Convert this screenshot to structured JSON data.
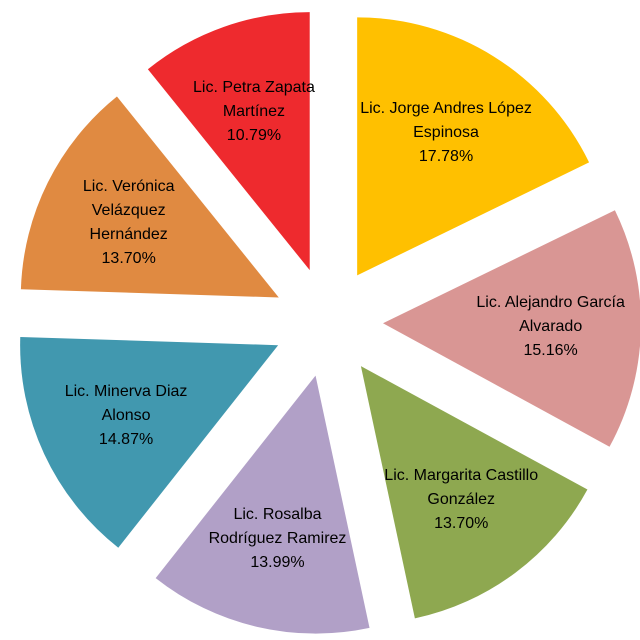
{
  "chart_data": {
    "type": "pie",
    "categories": [
      "Lic. Jorge Andres López Espinosa",
      "Lic. Alejandro García Alvarado",
      "Lic. Margarita Castillo González",
      "Lic. Rosalba Rodríguez Ramirez",
      "Lic. Minerva Diaz Alonso",
      "Lic. Verónica Velázquez Hernández",
      "Lic. Petra Zapata Martínez"
    ],
    "values": [
      17.78,
      15.16,
      13.7,
      13.99,
      14.87,
      13.7,
      10.79
    ],
    "value_labels": [
      "17.78%",
      "15.16%",
      "13.70%",
      "13.99%",
      "14.87%",
      "13.70%",
      "10.79%"
    ],
    "colors": [
      "#ffc000",
      "#d99694",
      "#8ea850",
      "#b1a0c7",
      "#4198af",
      "#e08a41",
      "#ee2a2e"
    ],
    "exploded": true
  }
}
